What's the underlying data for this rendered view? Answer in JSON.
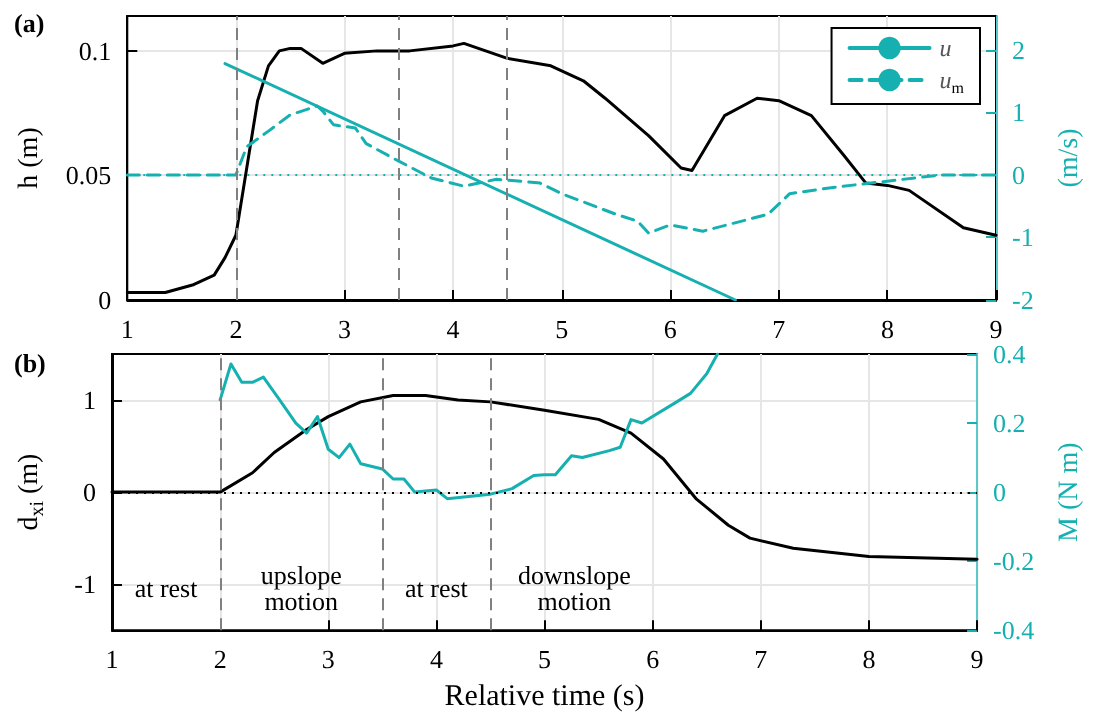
{
  "chart_data": [
    {
      "type": "line",
      "title": "(a)",
      "ylabel": "h (m)",
      "y2label": "(m/s)",
      "xlim": [
        1,
        9
      ],
      "xticks": [
        1,
        2,
        3,
        4,
        5,
        6,
        7,
        8,
        9
      ],
      "ylim": [
        0,
        0.114
      ],
      "yticks": [
        0,
        0.05,
        0.1
      ],
      "y2lim": [
        -2,
        2.54
      ],
      "y2ticks": [
        -2,
        -1,
        0,
        1,
        2
      ],
      "grid": true,
      "legend": "top right",
      "series": [
        {
          "color": "#000000",
          "x": [
            1,
            1.35,
            1.6,
            1.8,
            1.9,
            2,
            2.1,
            2.2,
            2.3,
            2.4,
            2.5,
            2.6,
            2.8,
            3,
            3.3,
            3.6,
            4,
            4.1,
            4.3,
            4.5,
            4.9,
            5.2,
            5.4,
            5.8,
            6.1,
            6.2,
            6.5,
            6.8,
            7,
            7.3,
            7.6,
            7.8,
            8,
            8.2,
            8.7,
            9
          ],
          "values": [
            0.003,
            0.003,
            0.006,
            0.01,
            0.017,
            0.026,
            0.053,
            0.08,
            0.094,
            0.1,
            0.101,
            0.101,
            0.095,
            0.099,
            0.1,
            0.1,
            0.102,
            0.103,
            0.1,
            0.097,
            0.094,
            0.088,
            0.081,
            0.066,
            0.053,
            0.052,
            0.074,
            0.081,
            0.08,
            0.074,
            0.058,
            0.047,
            0.046,
            0.044,
            0.029,
            0.026
          ]
        },
        {
          "name": "u",
          "color": "#17b0b0",
          "axis": "y2",
          "x": [
            1.9,
            6.6
          ],
          "values": [
            1.78,
            -2
          ]
        },
        {
          "name": "u$_{m}$",
          "color": "#17b0b0",
          "axis": "y2",
          "line_style": "dashed",
          "x": [
            1,
            2,
            2.1,
            2.3,
            2.5,
            2.75,
            2.8,
            2.9,
            3.1,
            3.2,
            3.5,
            3.8,
            4.1,
            4.4,
            4.8,
            5,
            5.5,
            5.7,
            5.8,
            6,
            6.3,
            6.9,
            7.1,
            7.5,
            8,
            8.5,
            9
          ],
          "values": [
            0,
            0,
            0.45,
            0.7,
            0.96,
            1.1,
            1.02,
            0.8,
            0.75,
            0.5,
            0.22,
            -0.05,
            -0.18,
            -0.07,
            -0.13,
            -0.3,
            -0.63,
            -0.74,
            -0.93,
            -0.8,
            -0.9,
            -0.63,
            -0.3,
            -0.2,
            -0.1,
            0,
            0
          ]
        }
      ],
      "ref_lines": [
        {
          "axis": "x",
          "value": 2,
          "color": "#808080",
          "line_style": "dashed"
        },
        {
          "axis": "x",
          "value": 3.5,
          "color": "#808080",
          "line_style": "dashed"
        },
        {
          "axis": "x",
          "value": 4.5,
          "color": "#808080",
          "line_style": "dashed"
        },
        {
          "axis": "y2",
          "value": 0,
          "color": "#17b0b0",
          "line_style": "dotted"
        }
      ]
    },
    {
      "type": "line",
      "title": "(b)",
      "xlabel": "Relative time (s)",
      "ylabel": "d$_{xi}$ (m)",
      "y2label": "M (N m)",
      "xlim": [
        1,
        9
      ],
      "xticks": [
        1,
        2,
        3,
        4,
        5,
        6,
        7,
        8,
        9
      ],
      "ylim": [
        -1.5,
        1.5
      ],
      "yticks": [
        -1,
        0,
        1
      ],
      "y2lim": [
        -0.4,
        0.4
      ],
      "y2ticks": [
        -0.4,
        -0.2,
        0,
        0.2,
        0.4
      ],
      "grid": true,
      "series": [
        {
          "color": "#000000",
          "x": [
            1,
            2,
            2.3,
            2.5,
            2.8,
            3,
            3.3,
            3.6,
            3.9,
            4.2,
            4.5,
            5,
            5.5,
            5.8,
            6.1,
            6.4,
            6.7,
            6.9,
            7.3,
            8,
            9
          ],
          "values": [
            0,
            0,
            0.21,
            0.43,
            0.68,
            0.82,
            0.98,
            1.05,
            1.05,
            1,
            0.98,
            0.89,
            0.79,
            0.64,
            0.36,
            -0.07,
            -0.36,
            -0.5,
            -0.61,
            -0.7,
            -0.73
          ]
        },
        {
          "color": "#17b0b0",
          "axis": "y2",
          "x": [
            2,
            2.1,
            2.2,
            2.3,
            2.4,
            2.55,
            2.7,
            2.8,
            2.9,
            3,
            3.1,
            3.2,
            3.3,
            3.5,
            3.6,
            3.7,
            3.8,
            4,
            4.1,
            4.5,
            4.7,
            4.9,
            5,
            5.1,
            5.25,
            5.35,
            5.6,
            5.7,
            5.8,
            5.9,
            6.2,
            6.35,
            6.5,
            6.6
          ],
          "values": [
            0.267,
            0.371,
            0.318,
            0.318,
            0.333,
            0.267,
            0.2,
            0.171,
            0.219,
            0.124,
            0.1,
            0.139,
            0.082,
            0.067,
            0.038,
            0.038,
            0,
            0.006,
            -0.019,
            -0.006,
            0.01,
            0.048,
            0.05,
            0.05,
            0.105,
            0.1,
            0.12,
            0.13,
            0.21,
            0.2,
            0.257,
            0.286,
            0.343,
            0.4
          ]
        }
      ],
      "ref_lines": [
        {
          "axis": "x",
          "value": 2,
          "color": "#808080",
          "line_style": "dashed"
        },
        {
          "axis": "x",
          "value": 3.5,
          "color": "#808080",
          "line_style": "dashed"
        },
        {
          "axis": "x",
          "value": 4.5,
          "color": "#808080",
          "line_style": "dashed"
        },
        {
          "axis": "y",
          "value": 0,
          "color": "#000000",
          "line_style": "dotted"
        }
      ],
      "annotations": [
        "at rest",
        "upslope\nmotion",
        "at rest",
        "downslope\nmotion"
      ]
    }
  ]
}
